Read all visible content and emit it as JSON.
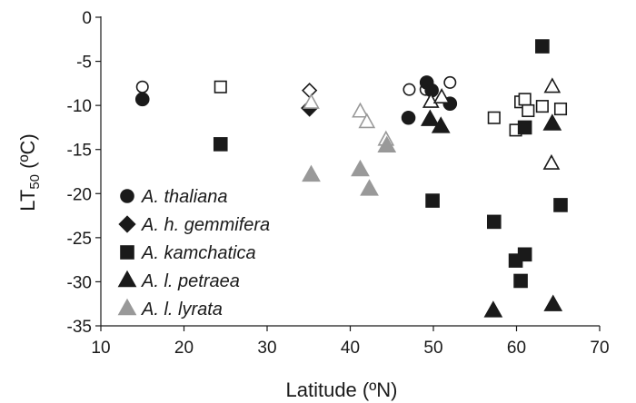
{
  "chart_data": {
    "type": "scatter",
    "xlabel": "Latitude (ºN)",
    "ylabel": {
      "main": "LT",
      "sub": "50",
      "unit": " (ºC)"
    },
    "xlim": [
      10,
      70
    ],
    "ylim": [
      -35,
      0
    ],
    "xticks": [
      10,
      20,
      30,
      40,
      50,
      60,
      70
    ],
    "yticks": [
      0,
      -5,
      -10,
      -15,
      -20,
      -25,
      -30,
      -35
    ],
    "grid": false,
    "legend_position": "bottom-left",
    "series": [
      {
        "name": "A. thaliana",
        "marker": "circle",
        "color": "#1a1a1a",
        "filled": [
          [
            15,
            -9.3
          ],
          [
            47,
            -11.4
          ],
          [
            49.2,
            -7.4
          ],
          [
            49.8,
            -8.3
          ],
          [
            52,
            -9.8
          ]
        ],
        "open": [
          [
            15,
            -7.9
          ],
          [
            47.1,
            -8.2
          ],
          [
            49.1,
            -8.2
          ],
          [
            52,
            -7.4
          ]
        ]
      },
      {
        "name": "A. h. gemmifera",
        "marker": "diamond",
        "color": "#1a1a1a",
        "filled": [
          [
            35.1,
            -10.3
          ]
        ],
        "open": [
          [
            35.1,
            -8.3
          ]
        ]
      },
      {
        "name": "A. kamchatica",
        "marker": "square",
        "color": "#1a1a1a",
        "filled": [
          [
            24.4,
            -14.4
          ],
          [
            49.9,
            -20.8
          ],
          [
            57.3,
            -23.2
          ],
          [
            59.9,
            -27.6
          ],
          [
            60.5,
            -29.9
          ],
          [
            61,
            -26.9
          ],
          [
            61,
            -12.5
          ],
          [
            63.1,
            -3.3
          ],
          [
            65.3,
            -21.3
          ]
        ],
        "open": [
          [
            24.4,
            -7.9
          ],
          [
            57.3,
            -11.4
          ],
          [
            59.9,
            -12.8
          ],
          [
            60.5,
            -9.6
          ],
          [
            61,
            -9.3
          ],
          [
            61.4,
            -10.6
          ],
          [
            63.1,
            -10.1
          ],
          [
            65.3,
            -10.4
          ]
        ]
      },
      {
        "name": "A. l. petraea",
        "marker": "triangle",
        "color": "#1a1a1a",
        "filled": [
          [
            49.6,
            -11.6
          ],
          [
            50.9,
            -12.4
          ],
          [
            57.2,
            -33.3
          ],
          [
            64.3,
            -12.1
          ],
          [
            64.4,
            -32.6
          ]
        ],
        "open": [
          [
            49.7,
            -9.6
          ],
          [
            51,
            -9.1
          ],
          [
            64.3,
            -7.9
          ],
          [
            64.2,
            -16.6
          ]
        ]
      },
      {
        "name": "A. l. lyrata",
        "marker": "triangle",
        "color": "#999999",
        "filled": [
          [
            35.3,
            -17.9
          ],
          [
            41.2,
            -17.3
          ],
          [
            42.3,
            -19.5
          ],
          [
            44.4,
            -14.6
          ]
        ],
        "open": [
          [
            35.3,
            -9.7
          ],
          [
            41.2,
            -10.7
          ],
          [
            42,
            -11.9
          ],
          [
            44.3,
            -13.9
          ]
        ]
      }
    ]
  }
}
